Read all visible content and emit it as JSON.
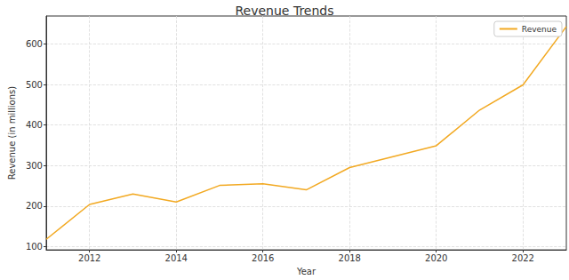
{
  "chart_data": {
    "type": "line",
    "title": "Revenue Trends",
    "x_label": "Year",
    "y_label": "Revenue (in millions)",
    "x": [
      2011,
      2012,
      2013,
      2014,
      2015,
      2016,
      2017,
      2018,
      2019,
      2020,
      2021,
      2022,
      2023
    ],
    "series": [
      {
        "name": "Revenue",
        "color": "#f2a922",
        "values": [
          118,
          204,
          230,
          210,
          251,
          255,
          240,
          295,
          322,
          349,
          437,
          499,
          643
        ]
      }
    ],
    "xlim": [
      2011,
      2023
    ],
    "xticks": [
      2012,
      2014,
      2016,
      2018,
      2020,
      2022
    ],
    "ylim": [
      92,
      669
    ],
    "yticks": [
      100,
      200,
      300,
      400,
      500,
      600
    ],
    "grid": true,
    "legend": "upper right"
  }
}
